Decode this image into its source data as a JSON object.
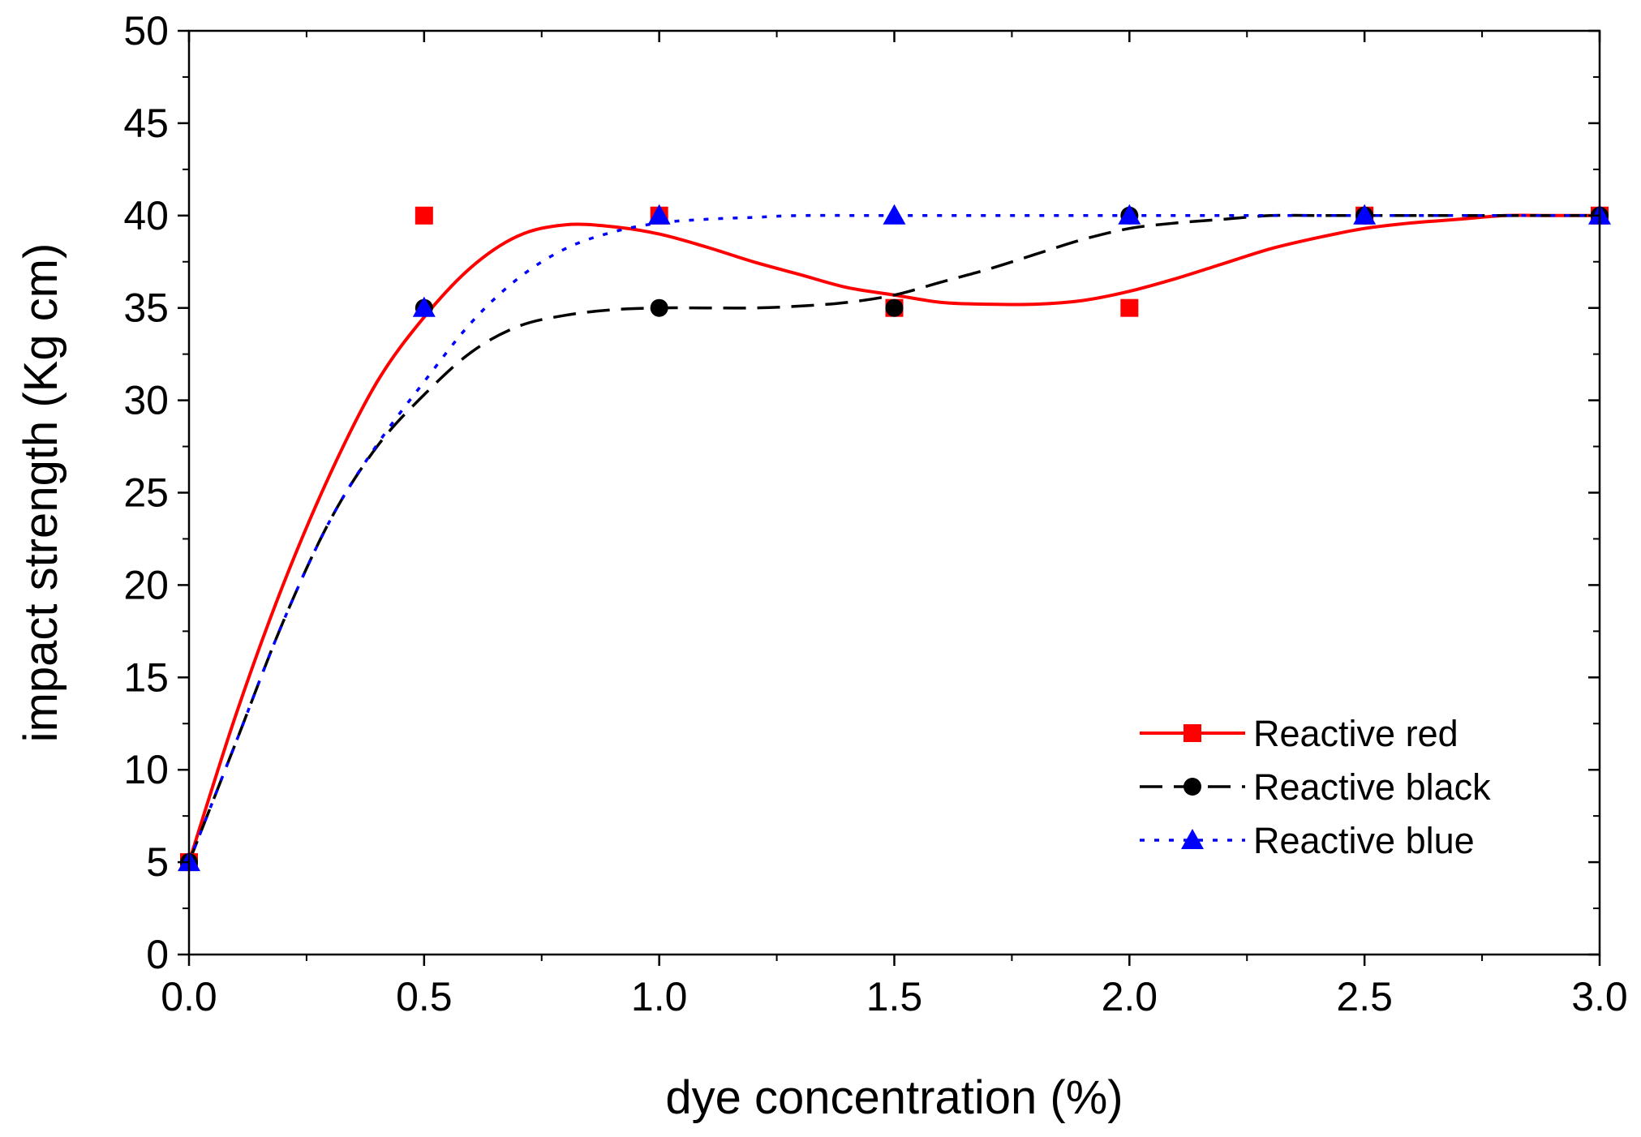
{
  "chart_data": {
    "type": "line",
    "xlabel": "dye concentration (%)",
    "ylabel": "impact strength (Kg cm)",
    "xlim": [
      0.0,
      3.0
    ],
    "ylim": [
      0,
      50
    ],
    "xticks": [
      "0.0",
      "0.5",
      "1.0",
      "1.5",
      "2.0",
      "2.5",
      "3.0"
    ],
    "yticks": [
      "0",
      "5",
      "10",
      "15",
      "20",
      "25",
      "30",
      "35",
      "40",
      "45",
      "50"
    ],
    "legend_position": "bottom-right",
    "series": [
      {
        "name": "Reactive red",
        "color": "#ff0000",
        "line_style": "solid",
        "marker": "square",
        "x": [
          0.0,
          0.5,
          1.0,
          1.5,
          2.0,
          2.5,
          3.0
        ],
        "values": [
          5,
          40,
          40,
          35,
          35,
          40,
          40
        ],
        "fit": [
          [
            0,
            5
          ],
          [
            0.1,
            13
          ],
          [
            0.2,
            20
          ],
          [
            0.3,
            26
          ],
          [
            0.4,
            31
          ],
          [
            0.5,
            34.5
          ],
          [
            0.6,
            37.2
          ],
          [
            0.7,
            38.9
          ],
          [
            0.8,
            39.5
          ],
          [
            0.9,
            39.4
          ],
          [
            1.0,
            39.0
          ],
          [
            1.1,
            38.3
          ],
          [
            1.2,
            37.5
          ],
          [
            1.3,
            36.8
          ],
          [
            1.4,
            36.1
          ],
          [
            1.5,
            35.7
          ],
          [
            1.6,
            35.3
          ],
          [
            1.7,
            35.2
          ],
          [
            1.8,
            35.2
          ],
          [
            1.9,
            35.4
          ],
          [
            2.0,
            35.9
          ],
          [
            2.1,
            36.6
          ],
          [
            2.2,
            37.4
          ],
          [
            2.3,
            38.2
          ],
          [
            2.4,
            38.8
          ],
          [
            2.5,
            39.3
          ],
          [
            2.6,
            39.6
          ],
          [
            2.7,
            39.8
          ],
          [
            2.8,
            40.0
          ],
          [
            2.9,
            40.0
          ],
          [
            3.0,
            40.0
          ]
        ]
      },
      {
        "name": "Reactive black",
        "color": "#000000",
        "line_style": "dashed",
        "marker": "circle",
        "x": [
          0.0,
          0.5,
          1.0,
          1.5,
          2.0,
          2.5,
          3.0
        ],
        "values": [
          5,
          35,
          35,
          35,
          40,
          40,
          40
        ],
        "fit": [
          [
            0,
            5
          ],
          [
            0.1,
            11.5
          ],
          [
            0.2,
            18
          ],
          [
            0.3,
            23.5
          ],
          [
            0.4,
            27.5
          ],
          [
            0.5,
            30.3
          ],
          [
            0.6,
            32.6
          ],
          [
            0.7,
            34.0
          ],
          [
            0.8,
            34.6
          ],
          [
            0.9,
            34.9
          ],
          [
            1.0,
            35.0
          ],
          [
            1.1,
            35.0
          ],
          [
            1.2,
            35.0
          ],
          [
            1.3,
            35.1
          ],
          [
            1.4,
            35.3
          ],
          [
            1.5,
            35.7
          ],
          [
            1.6,
            36.4
          ],
          [
            1.7,
            37.1
          ],
          [
            1.8,
            37.9
          ],
          [
            1.9,
            38.7
          ],
          [
            2.0,
            39.3
          ],
          [
            2.1,
            39.6
          ],
          [
            2.2,
            39.8
          ],
          [
            2.3,
            40.0
          ],
          [
            2.4,
            40.0
          ],
          [
            2.5,
            40.0
          ],
          [
            2.6,
            40.0
          ],
          [
            2.7,
            40.0
          ],
          [
            2.8,
            40.0
          ],
          [
            2.9,
            40.0
          ],
          [
            3.0,
            40.0
          ]
        ]
      },
      {
        "name": "Reactive blue",
        "color": "#0000ff",
        "line_style": "dotted",
        "marker": "triangle",
        "x": [
          0.0,
          0.5,
          1.0,
          1.5,
          2.0,
          2.5,
          3.0
        ],
        "values": [
          5,
          35,
          40,
          40,
          40,
          40,
          40
        ],
        "fit": [
          [
            0,
            5
          ],
          [
            0.1,
            11.5
          ],
          [
            0.2,
            18
          ],
          [
            0.3,
            23.5
          ],
          [
            0.4,
            27.6
          ],
          [
            0.5,
            31.0
          ],
          [
            0.6,
            34.2
          ],
          [
            0.7,
            36.6
          ],
          [
            0.8,
            38.2
          ],
          [
            0.9,
            39.1
          ],
          [
            1.0,
            39.6
          ],
          [
            1.1,
            39.8
          ],
          [
            1.2,
            39.9
          ],
          [
            1.3,
            40.0
          ],
          [
            1.5,
            40.0
          ],
          [
            2.0,
            40.0
          ],
          [
            2.5,
            40.0
          ],
          [
            3.0,
            40.0
          ]
        ]
      }
    ]
  }
}
